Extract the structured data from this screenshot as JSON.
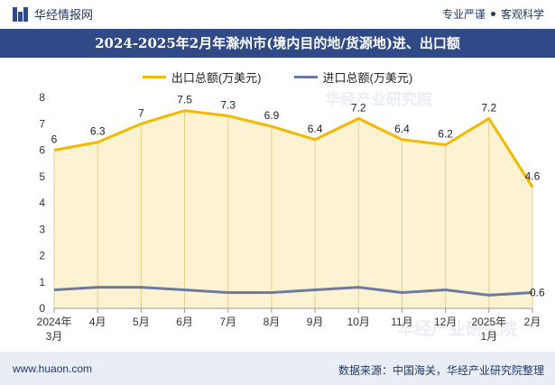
{
  "header": {
    "brand": "华经情报网",
    "tagline_left": "专业严谨",
    "tagline_right": "客观科学"
  },
  "colors": {
    "export": "#f5b800",
    "import": "#6b7aa1",
    "fill": "#fdf3d2",
    "title_bg": "#2f4a86"
  },
  "chart_data": {
    "type": "area",
    "title": "2024-2025年2月年滁州市(境内目的地/货源地)进、出口额",
    "categories": [
      "2024年3月",
      "4月",
      "5月",
      "6月",
      "7月",
      "8月",
      "9月",
      "10月",
      "11月",
      "12月",
      "2025年1月",
      "2月"
    ],
    "ylim": [
      0,
      8
    ],
    "yticks": [
      0,
      1,
      2,
      3,
      4,
      5,
      6,
      7,
      8
    ],
    "legend_position": "top-center",
    "series": [
      {
        "name": "出口总额(万美元)",
        "values": [
          6,
          6.3,
          7,
          7.5,
          7.3,
          6.9,
          6.4,
          7.2,
          6.4,
          6.2,
          7.2,
          4.6
        ],
        "labels": [
          "6",
          "6.3",
          "7",
          "7.5",
          "7.3",
          "6.9",
          "6.4",
          "7.2",
          "6.4",
          "6.2",
          "7.2",
          "4.6"
        ]
      },
      {
        "name": "进口总额(万美元)",
        "values": [
          0.7,
          0.8,
          0.8,
          0.7,
          0.6,
          0.6,
          0.7,
          0.8,
          0.6,
          0.7,
          0.5,
          0.6
        ],
        "labels": [
          "",
          "",
          "",
          "",
          "",
          "",
          "",
          "",
          "",
          "",
          "",
          "0.6"
        ]
      }
    ]
  },
  "footer": {
    "website": "www.huaon.com",
    "source": "数据来源：中国海关，华经产业研究院整理"
  },
  "watermarks": [
    "华经产业研究院",
    "www.huaon.com",
    "华经产业研究院"
  ]
}
